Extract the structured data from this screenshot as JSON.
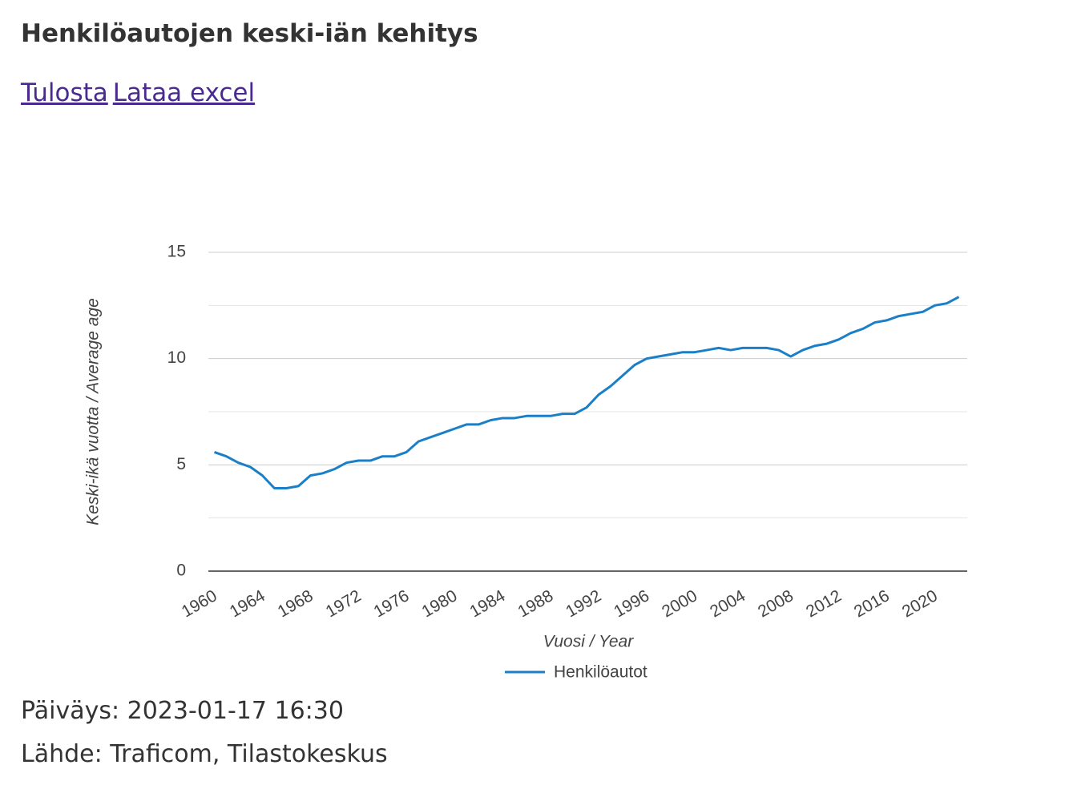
{
  "header": {
    "title": "Henkilöautojen keski-iän kehitys",
    "links": [
      "Tulosta",
      "Lataa excel"
    ]
  },
  "chart_data": {
    "type": "line",
    "x_label": "Vuosi / Year",
    "y_label": "Keski-ikä vuotta / Average age",
    "x": [
      1960,
      1961,
      1962,
      1963,
      1964,
      1965,
      1966,
      1967,
      1968,
      1969,
      1970,
      1971,
      1972,
      1973,
      1974,
      1975,
      1976,
      1977,
      1978,
      1979,
      1980,
      1981,
      1982,
      1983,
      1984,
      1985,
      1986,
      1987,
      1988,
      1989,
      1990,
      1991,
      1992,
      1993,
      1994,
      1995,
      1996,
      1997,
      1998,
      1999,
      2000,
      2001,
      2002,
      2003,
      2004,
      2005,
      2006,
      2007,
      2008,
      2009,
      2010,
      2011,
      2012,
      2013,
      2014,
      2015,
      2016,
      2017,
      2018,
      2019,
      2020,
      2021,
      2022
    ],
    "series": [
      {
        "name": "Henkilöautot",
        "color": "#1a7fc7",
        "values": [
          5.6,
          5.4,
          5.1,
          4.9,
          4.5,
          3.9,
          3.9,
          4.0,
          4.5,
          4.6,
          4.8,
          5.1,
          5.2,
          5.2,
          5.4,
          5.4,
          5.6,
          6.1,
          6.3,
          6.5,
          6.7,
          6.9,
          6.9,
          7.1,
          7.2,
          7.2,
          7.3,
          7.3,
          7.3,
          7.4,
          7.4,
          7.7,
          8.3,
          8.7,
          9.2,
          9.7,
          10.0,
          10.1,
          10.2,
          10.3,
          10.3,
          10.4,
          10.5,
          10.4,
          10.5,
          10.5,
          10.5,
          10.4,
          10.1,
          10.4,
          10.6,
          10.7,
          10.9,
          11.2,
          11.4,
          11.7,
          11.8,
          12.0,
          12.1,
          12.2,
          12.5,
          12.6,
          12.9
        ]
      }
    ],
    "xlim": [
      1959.5,
      2022.7
    ],
    "xticks": [
      1960,
      1964,
      1968,
      1972,
      1976,
      1980,
      1984,
      1988,
      1992,
      1996,
      2000,
      2004,
      2008,
      2012,
      2016,
      2020
    ],
    "ylim": [
      0,
      15
    ],
    "yticks": [
      0,
      5,
      10,
      15
    ],
    "minor_yticks": [
      2.5,
      7.5,
      12.5
    ],
    "grid": true,
    "legend": "bottom"
  },
  "footer": {
    "date": "Päiväys: 2023-01-17 16:30",
    "source": "Lähde: Traficom, Tilastokeskus"
  }
}
